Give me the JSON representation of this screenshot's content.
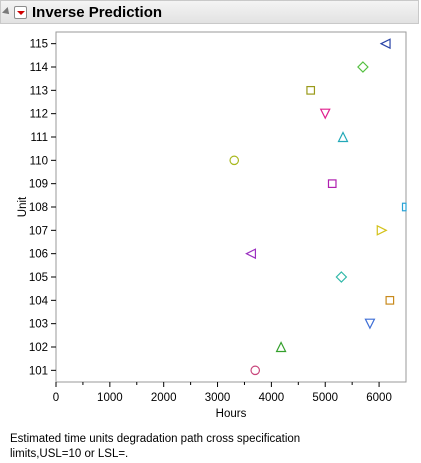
{
  "header": {
    "title": "Inverse Prediction"
  },
  "chart_data": {
    "type": "scatter",
    "xlabel": "Hours",
    "ylabel": "Unit",
    "xlim": [
      0,
      6500
    ],
    "xticks": [
      0,
      1000,
      2000,
      3000,
      4000,
      5000,
      6000
    ],
    "categories": [
      "101",
      "102",
      "103",
      "104",
      "105",
      "106",
      "107",
      "108",
      "109",
      "110",
      "111",
      "112",
      "113",
      "114",
      "115"
    ],
    "grid": false,
    "legend": "none",
    "points": [
      {
        "unit": "101",
        "x": 3700,
        "marker": "circle",
        "color": "#c8457b"
      },
      {
        "unit": "102",
        "x": 4180,
        "marker": "triangle-up",
        "color": "#34a02c"
      },
      {
        "unit": "103",
        "x": 5830,
        "marker": "triangle-down",
        "color": "#3f6fd6"
      },
      {
        "unit": "104",
        "x": 6200,
        "marker": "square",
        "color": "#c88a1d"
      },
      {
        "unit": "105",
        "x": 5300,
        "marker": "diamond",
        "color": "#2fb8a8"
      },
      {
        "unit": "106",
        "x": 3620,
        "marker": "triangle-left",
        "color": "#9b2fc0"
      },
      {
        "unit": "107",
        "x": 6050,
        "marker": "triangle-right",
        "color": "#d4c21a"
      },
      {
        "unit": "108",
        "x": 6480,
        "marker": "square",
        "color": "#29a3d6"
      },
      {
        "unit": "109",
        "x": 5130,
        "marker": "square",
        "color": "#b01fb0"
      },
      {
        "unit": "110",
        "x": 3310,
        "marker": "circle",
        "color": "#a8b81c"
      },
      {
        "unit": "111",
        "x": 5330,
        "marker": "triangle-up",
        "color": "#22a8b8"
      },
      {
        "unit": "112",
        "x": 5000,
        "marker": "triangle-down",
        "color": "#e0208f"
      },
      {
        "unit": "113",
        "x": 4730,
        "marker": "square",
        "color": "#9a9a1a"
      },
      {
        "unit": "114",
        "x": 5700,
        "marker": "diamond",
        "color": "#54c040"
      },
      {
        "unit": "115",
        "x": 6120,
        "marker": "triangle-left",
        "color": "#2a45a8"
      }
    ]
  },
  "note": "Estimated time units degradation path cross specification limits,USL=10 or LSL=."
}
